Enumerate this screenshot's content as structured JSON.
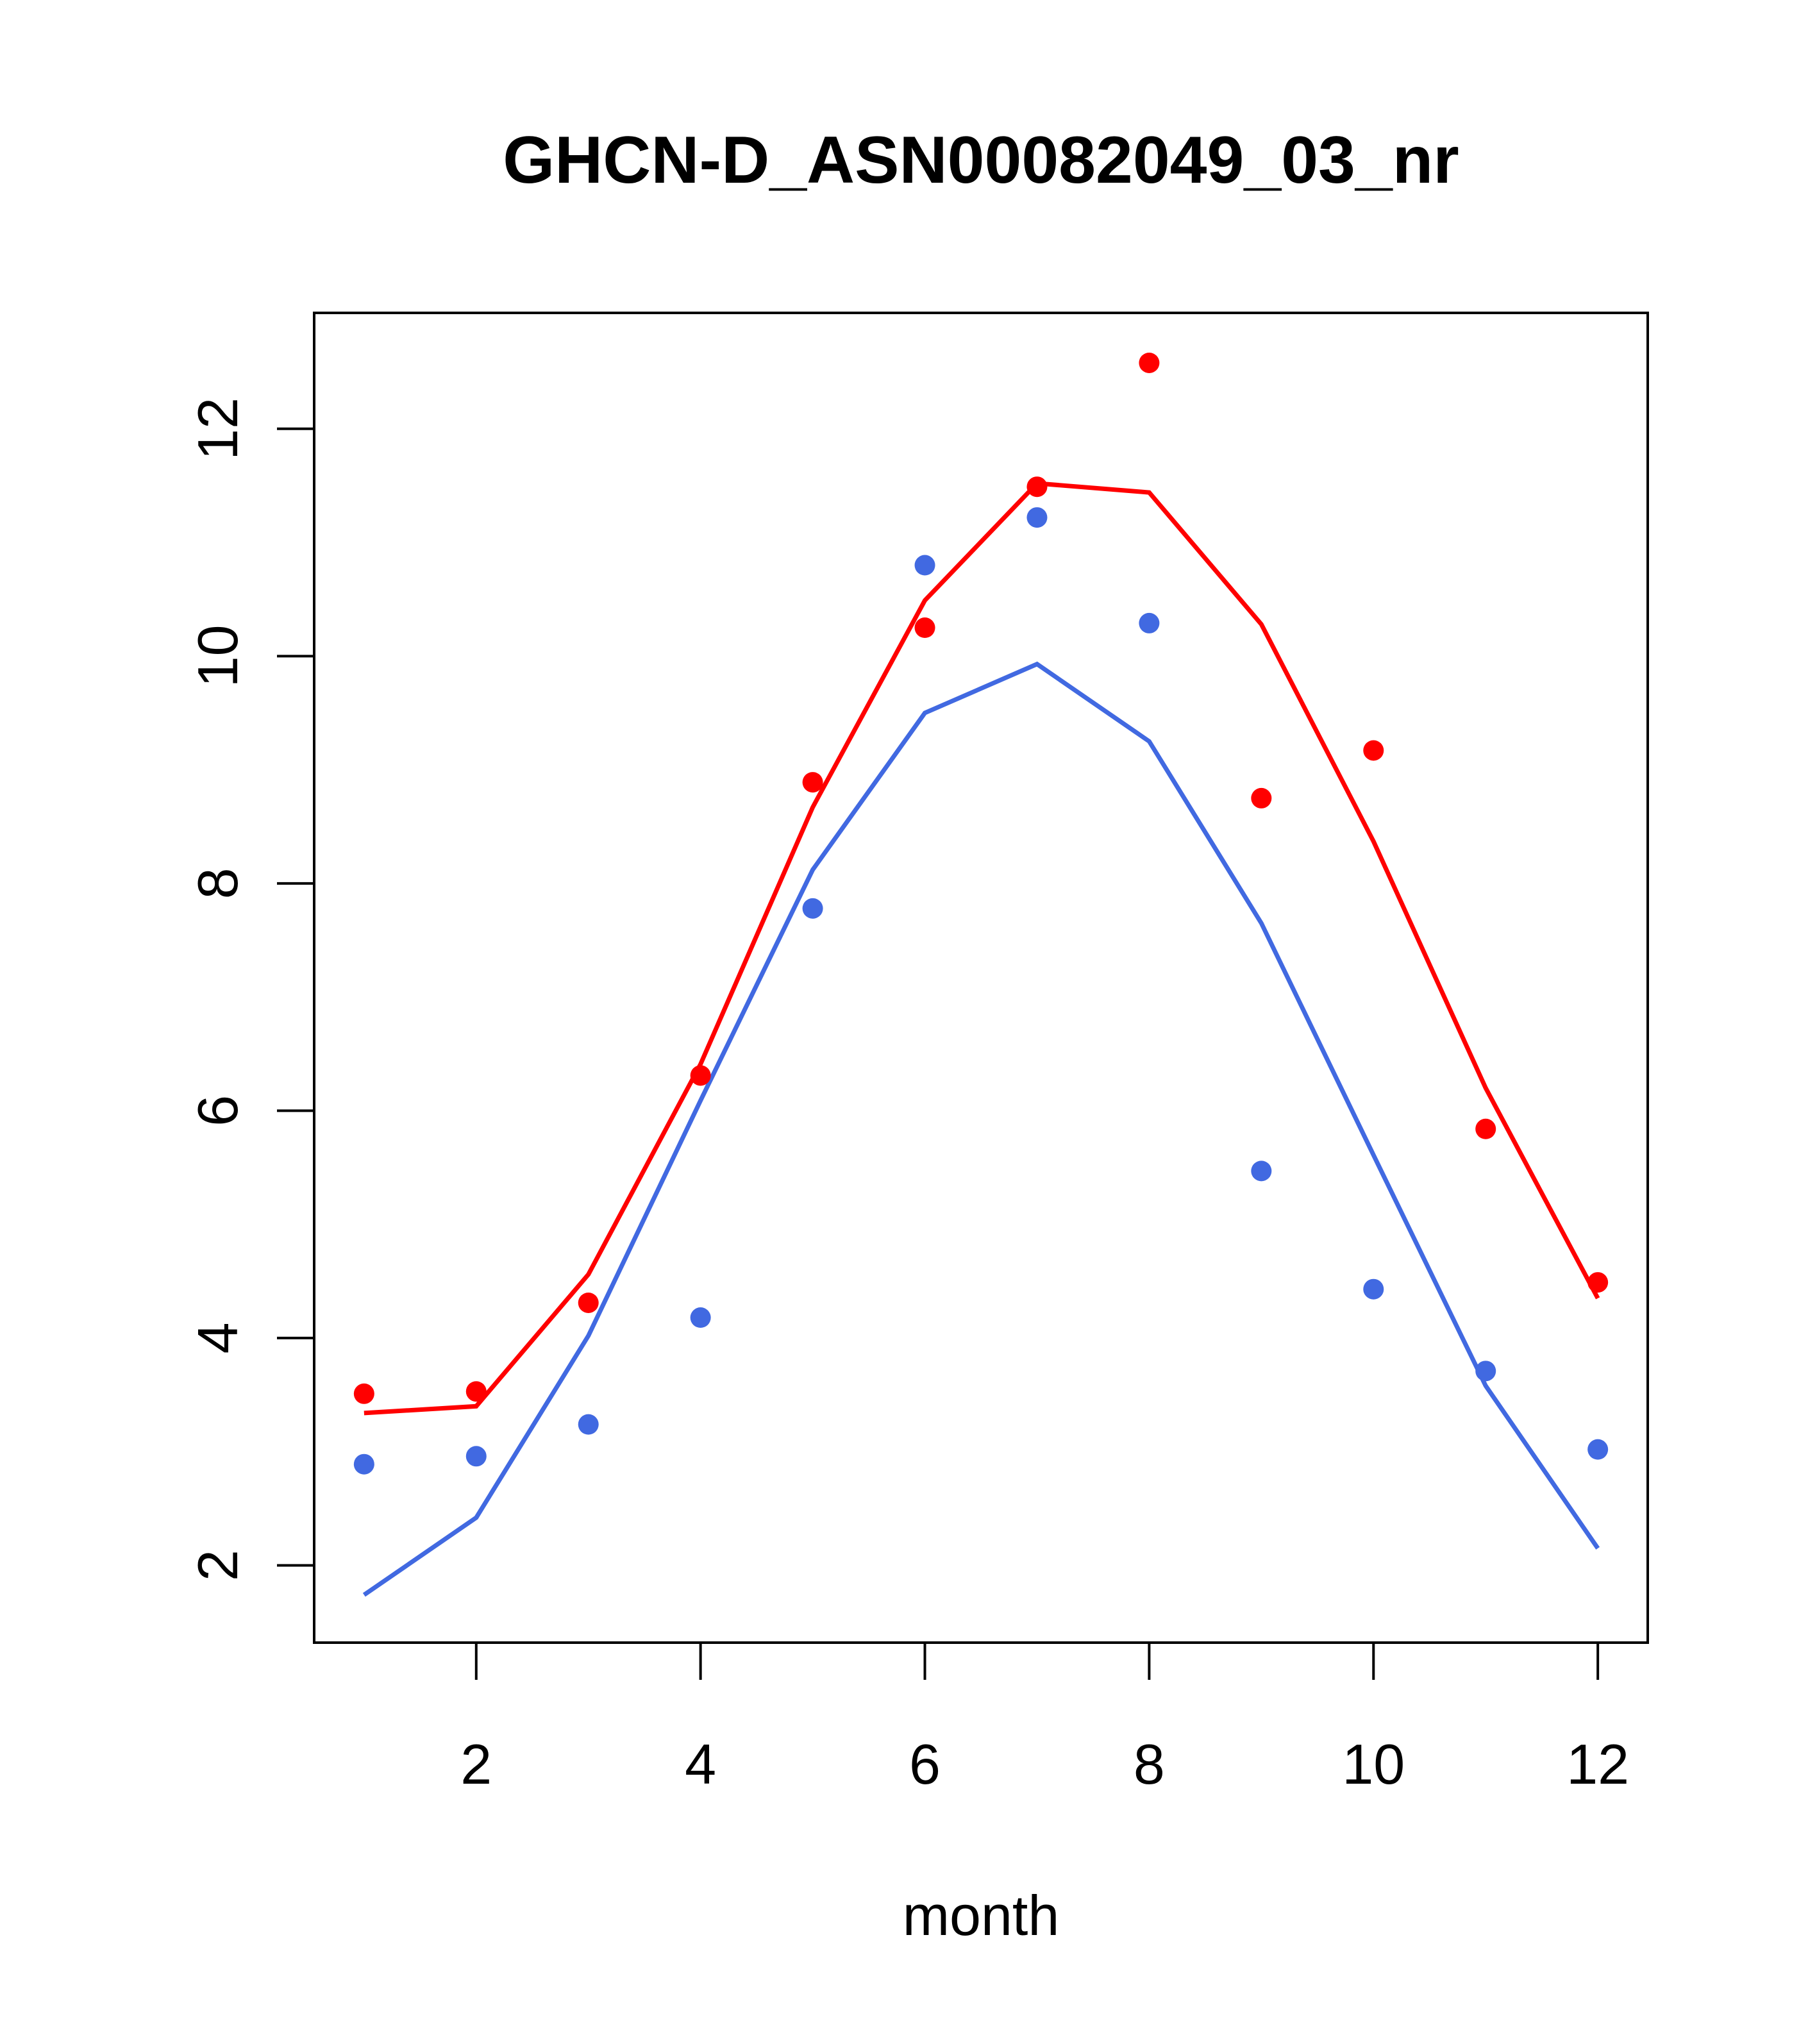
{
  "chart_data": {
    "type": "line",
    "title": "GHCN-D_ASN00082049_03_nr",
    "xlabel": "month",
    "ylabel": "",
    "xlim": [
      0.555,
      12.445
    ],
    "ylim": [
      1.32,
      13.02
    ],
    "x_ticks": [
      2,
      4,
      6,
      8,
      10,
      12
    ],
    "y_ticks": [
      2,
      4,
      6,
      8,
      10,
      12
    ],
    "x": [
      1,
      2,
      3,
      4,
      5,
      6,
      7,
      8,
      9,
      10,
      11,
      12
    ],
    "grid": false,
    "series": [
      {
        "name": "red-points",
        "kind": "points",
        "color": "#ff0000",
        "values": [
          3.51,
          3.53,
          4.31,
          6.31,
          8.89,
          10.25,
          11.49,
          12.58,
          8.75,
          9.17,
          5.84,
          4.49
        ]
      },
      {
        "name": "red-line",
        "kind": "line",
        "color": "#ff0000",
        "values": [
          3.34,
          3.4,
          4.56,
          6.41,
          8.67,
          10.49,
          11.52,
          11.44,
          10.28,
          8.37,
          6.2,
          4.35
        ]
      },
      {
        "name": "blue-points",
        "kind": "points",
        "color": "#4169e1",
        "values": [
          2.89,
          2.96,
          3.24,
          4.18,
          7.78,
          10.8,
          11.22,
          10.29,
          5.47,
          4.43,
          3.71,
          3.02
        ]
      },
      {
        "name": "blue-line",
        "kind": "line",
        "color": "#4169e1",
        "values": [
          1.74,
          2.42,
          4.02,
          6.09,
          8.12,
          9.5,
          9.93,
          9.25,
          7.65,
          5.61,
          3.58,
          2.15
        ]
      }
    ]
  }
}
